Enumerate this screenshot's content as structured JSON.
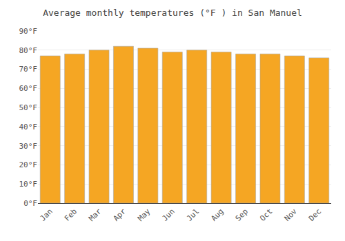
{
  "chart_data": {
    "type": "bar",
    "title": "Average monthly temperatures (°F ) in San Manuel",
    "categories": [
      "Jan",
      "Feb",
      "Mar",
      "Apr",
      "May",
      "Jun",
      "Jul",
      "Aug",
      "Sep",
      "Oct",
      "Nov",
      "Dec"
    ],
    "values": [
      77,
      78,
      80,
      82,
      81,
      79,
      80,
      79,
      78,
      78,
      77,
      76
    ],
    "color": "#F5A623",
    "ylim": [
      0,
      90
    ],
    "yticks": [
      {
        "value": 0,
        "label": "0°F"
      },
      {
        "value": 10,
        "label": "10°F"
      },
      {
        "value": 20,
        "label": "20°F"
      },
      {
        "value": 30,
        "label": "30°F"
      },
      {
        "value": 40,
        "label": "40°F"
      },
      {
        "value": 50,
        "label": "50°F"
      },
      {
        "value": 60,
        "label": "60°F"
      },
      {
        "value": 70,
        "label": "70°F"
      },
      {
        "value": 80,
        "label": "80°F"
      },
      {
        "value": 90,
        "label": "90°F"
      }
    ],
    "grid": true
  }
}
